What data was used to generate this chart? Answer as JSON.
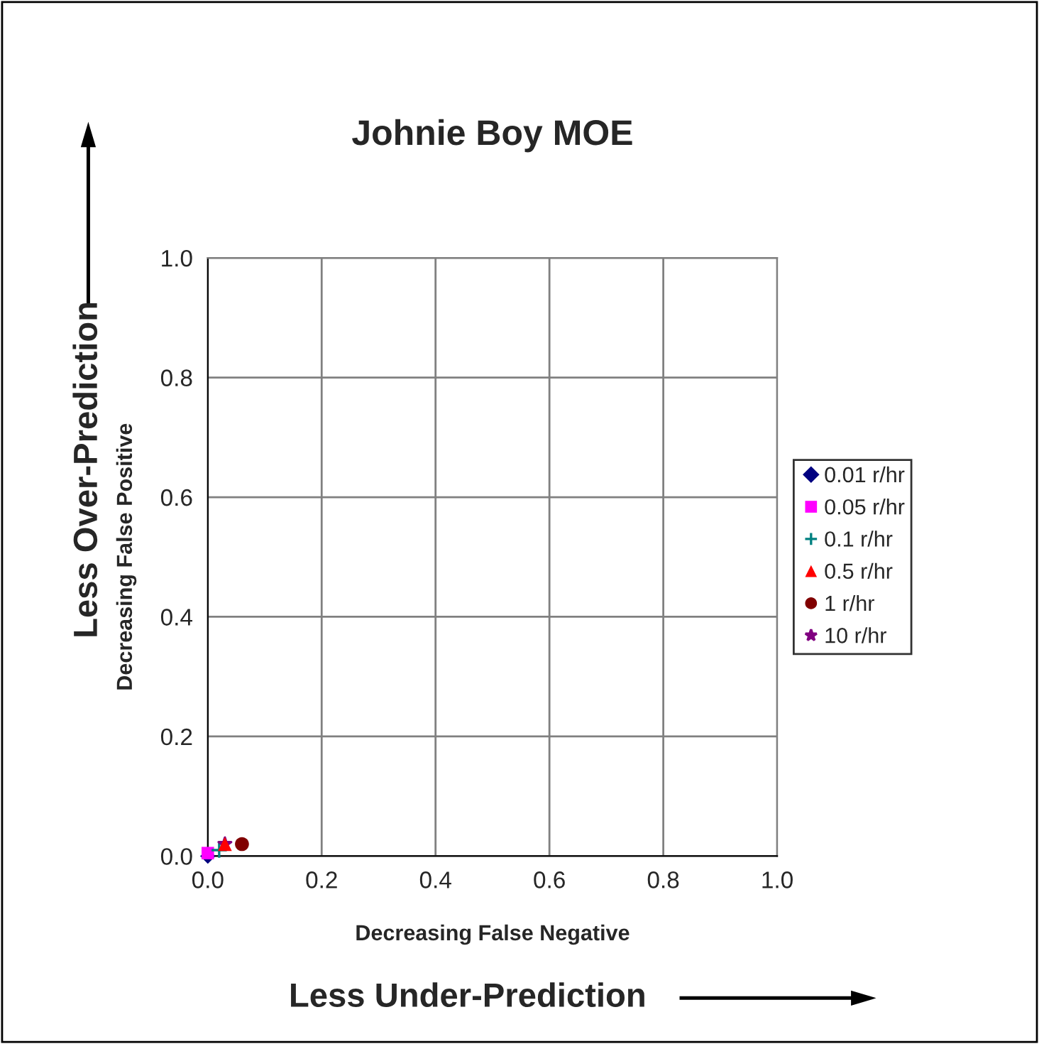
{
  "chart_data": {
    "type": "scatter",
    "title": "Johnie Boy MOE",
    "xlabel": "Decreasing False Negative",
    "ylabel": "Decreasing False Positive",
    "annotations": [
      "Less Under-Prediction",
      "Less Over-Prediction"
    ],
    "xlim": [
      0,
      1
    ],
    "ylim": [
      0,
      1
    ],
    "xticks": [
      {
        "value": 0,
        "label": "0.0"
      },
      {
        "value": 0.2,
        "label": "0.2"
      },
      {
        "value": 0.4,
        "label": "0.4"
      },
      {
        "value": 0.6,
        "label": "0.6"
      },
      {
        "value": 0.8,
        "label": "0.8"
      },
      {
        "value": 1,
        "label": "1.0"
      }
    ],
    "yticks": [
      {
        "value": 0,
        "label": "0.0"
      },
      {
        "value": 0.2,
        "label": "0.2"
      },
      {
        "value": 0.4,
        "label": "0.4"
      },
      {
        "value": 0.6,
        "label": "0.6"
      },
      {
        "value": 0.8,
        "label": "0.8"
      },
      {
        "value": 1,
        "label": "1.0"
      }
    ],
    "grid": true,
    "legend": "right",
    "series": [
      {
        "name": "0.01 r/hr",
        "color": "#000080",
        "marker": "diamond",
        "x": [
          0.0
        ],
        "values": [
          0.0
        ]
      },
      {
        "name": "0.05 r/hr",
        "color": "#ff00ff",
        "marker": "square",
        "x": [
          0.0
        ],
        "values": [
          0.005
        ]
      },
      {
        "name": "0.1 r/hr",
        "color": "#008080",
        "marker": "cross",
        "x": [
          0.02
        ],
        "values": [
          0.01
        ]
      },
      {
        "name": "0.5 r/hr",
        "color": "#ff0000",
        "marker": "triangle",
        "x": [
          0.03
        ],
        "values": [
          0.02
        ]
      },
      {
        "name": "1 r/hr",
        "color": "#800000",
        "marker": "circle",
        "x": [
          0.06
        ],
        "values": [
          0.02
        ]
      },
      {
        "name": "10 r/hr",
        "color": "#800080",
        "marker": "star",
        "x": [
          0.03
        ],
        "values": [
          0.02
        ]
      }
    ]
  }
}
